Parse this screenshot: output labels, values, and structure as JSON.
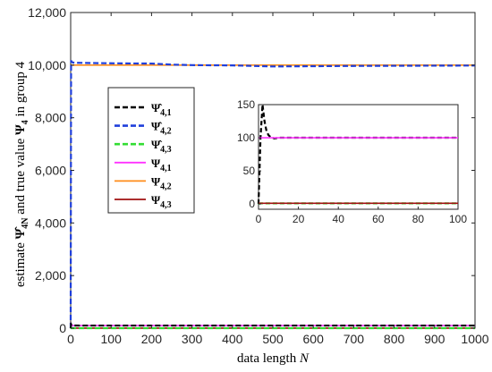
{
  "chart_data": {
    "type": "line",
    "xlabel_text": "data length ",
    "xlabel_var": "N",
    "ylabel_pre": "estimate ",
    "ylabel_sym": "Ψ̂",
    "ylabel_sub": "4N",
    "ylabel_mid": " and true value ",
    "ylabel_sym2": "Ψ",
    "ylabel_sub2": "4",
    "ylabel_post": " in group 4",
    "xlim": [
      0,
      1000
    ],
    "ylim": [
      0,
      12000
    ],
    "x_ticks": [
      "0",
      "100",
      "200",
      "300",
      "400",
      "500",
      "600",
      "700",
      "800",
      "900",
      "1000"
    ],
    "y_ticks": [
      "0",
      "2,000",
      "4,000",
      "6,000",
      "8,000",
      "10,000",
      "12,000"
    ],
    "grid": false,
    "legend_position": "left-middle",
    "series": [
      {
        "name": "Ψ̂",
        "sub": "4,1",
        "color": "#000000",
        "dash": true,
        "x": [
          0,
          1,
          2,
          3,
          5,
          10,
          50,
          100,
          200,
          300,
          400,
          500,
          600,
          700,
          800,
          900,
          1000
        ],
        "y": [
          0,
          150,
          120,
          105,
          102,
          101,
          100,
          100,
          100,
          100,
          100,
          100,
          100,
          100,
          100,
          100,
          100
        ]
      },
      {
        "name": "Ψ̂",
        "sub": "4,2",
        "color": "#1f3fdb",
        "dash": true,
        "x": [
          0,
          1,
          2,
          3,
          5,
          10,
          50,
          100,
          200,
          250,
          300,
          400,
          500,
          600,
          700,
          800,
          900,
          1000
        ],
        "y": [
          0,
          10150,
          10150,
          10120,
          10100,
          10090,
          10080,
          10070,
          10060,
          10020,
          10000,
          9990,
          9950,
          9960,
          9970,
          9975,
          9980,
          9985
        ]
      },
      {
        "name": "Ψ̂",
        "sub": "4,3",
        "color": "#33dd33",
        "dash": true,
        "x": [
          0,
          1,
          2,
          3,
          5,
          10,
          100,
          200,
          300,
          400,
          500,
          600,
          700,
          800,
          900,
          1000
        ],
        "y": [
          0,
          1,
          1,
          1,
          1,
          1,
          1,
          1,
          1,
          1,
          1,
          1,
          1,
          1,
          1,
          1
        ]
      },
      {
        "name": "Ψ",
        "sub": "4,1",
        "color": "#ff33ff",
        "dash": false,
        "x": [
          0,
          1000
        ],
        "y": [
          100,
          100
        ]
      },
      {
        "name": "Ψ",
        "sub": "4,2",
        "color": "#ff8c1a",
        "dash": false,
        "x": [
          0,
          1000
        ],
        "y": [
          10000,
          10000
        ]
      },
      {
        "name": "Ψ",
        "sub": "4,3",
        "color": "#a01010",
        "dash": false,
        "x": [
          0,
          1000
        ],
        "y": [
          1,
          1
        ]
      }
    ],
    "inset": {
      "xlim": [
        0,
        100
      ],
      "ylim": [
        -8,
        150
      ],
      "x_ticks": [
        "0",
        "20",
        "40",
        "60",
        "80",
        "100"
      ],
      "y_ticks": [
        "0",
        "50",
        "100",
        "150"
      ],
      "series": [
        {
          "ref": 0,
          "x": [
            0,
            1,
            2,
            3,
            4,
            5,
            6,
            8,
            10,
            20,
            40,
            60,
            80,
            100
          ],
          "y": [
            0,
            100,
            150,
            125,
            110,
            104,
            101,
            99,
            100,
            100,
            100,
            100,
            100,
            100
          ]
        },
        {
          "ref": 3,
          "x": [
            0,
            100
          ],
          "y": [
            100,
            100
          ]
        },
        {
          "ref": 2,
          "x": [
            0,
            1,
            2,
            100
          ],
          "y": [
            0,
            1,
            1,
            1
          ]
        },
        {
          "ref": 5,
          "x": [
            0,
            100
          ],
          "y": [
            1,
            1
          ]
        }
      ]
    }
  }
}
